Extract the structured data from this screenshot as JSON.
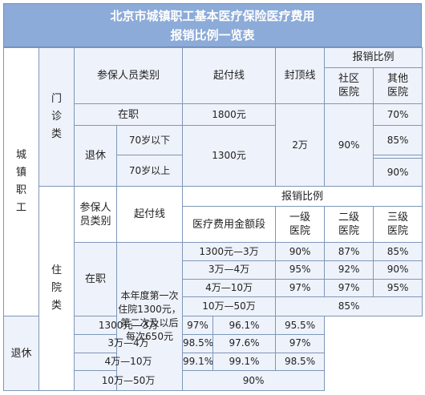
{
  "title": {
    "line1": "北京市城镇职工基本医疗保险医疗费用",
    "line2": "报销比例一览表"
  },
  "category": {
    "text": [
      "城",
      "镇",
      "职",
      "工"
    ]
  },
  "outpatient": {
    "label": [
      "门",
      "诊",
      "类"
    ],
    "header": {
      "insured_type": "参保人员类别",
      "deductible": "起付线",
      "cap": "封顶线",
      "ratio": "报销比例",
      "community": [
        "社区",
        "医院"
      ],
      "other": [
        "其他",
        "医院"
      ]
    },
    "employed": {
      "label": "在职",
      "deductible": "1800元",
      "other_ratio": "70%"
    },
    "retired": {
      "label": "退休",
      "under70": "70岁以下",
      "over70": "70岁以上",
      "deductible": "1300元",
      "under70_other": "85%",
      "over70_other": "90%"
    },
    "cap_value": "2万",
    "community_ratio": "90%"
  },
  "inpatient": {
    "label": [
      "住",
      "院",
      "类"
    ],
    "header": {
      "insured_type": [
        "参保人",
        "员类别"
      ],
      "deductible": "起付线",
      "ratio": "报销比例",
      "amount_range": "医疗费用金额段",
      "level1": [
        "一级",
        "医院"
      ],
      "level2": [
        "二级",
        "医院"
      ],
      "level3": [
        "三级",
        "医院"
      ]
    },
    "deductible_note": [
      "本年度第一次",
      "住院1300元，",
      "第二次及以后",
      "每次650元"
    ],
    "employed": {
      "label": "在职",
      "rows": [
        {
          "range": "1300元—3万",
          "l1": "90%",
          "l2": "87%",
          "l3": "85%"
        },
        {
          "range": "3万—4万",
          "l1": "95%",
          "l2": "92%",
          "l3": "90%"
        },
        {
          "range": "4万—10万",
          "l1": "97%",
          "l2": "97%",
          "l3": "95%"
        }
      ],
      "top": {
        "range": "10万—50万",
        "all": "85%"
      }
    },
    "retired": {
      "label": "退休",
      "rows": [
        {
          "range": "1300元—3万",
          "l1": "97%",
          "l2": "96.1%",
          "l3": "95.5%"
        },
        {
          "range": "3万—4万",
          "l1": "98.5%",
          "l2": "97.6%",
          "l3": "97%"
        },
        {
          "range": "4万—10万",
          "l1": "99.1%",
          "l2": "99.1%",
          "l3": "98.5%"
        }
      ],
      "top": {
        "range": "10万—50万",
        "all": "90%"
      }
    }
  }
}
